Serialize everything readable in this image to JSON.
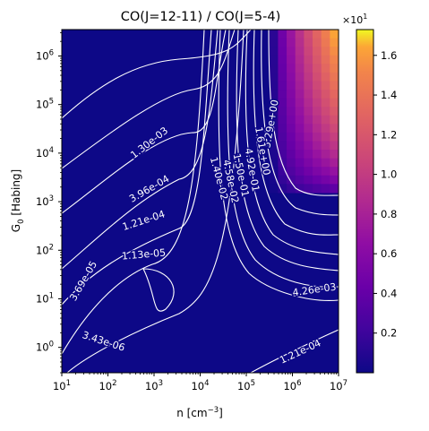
{
  "chart_data": {
    "type": "heatmap",
    "title": "CO(J=12-11) / CO(J=5-4)",
    "xlabel": "n [cm",
    "xlabel_sup": "−3",
    "xlabel_end": "]",
    "ylabel": "G",
    "ylabel_sub": "0",
    "ylabel_end": " [Habing]",
    "x_scale": "log",
    "y_scale": "log",
    "xlim": [
      10,
      10000000
    ],
    "ylim": [
      0.3,
      3500000
    ],
    "x_ticks": [
      {
        "value": 10,
        "base": "10",
        "exp": "1"
      },
      {
        "value": 100,
        "base": "10",
        "exp": "2"
      },
      {
        "value": 1000,
        "base": "10",
        "exp": "3"
      },
      {
        "value": 10000,
        "base": "10",
        "exp": "4"
      },
      {
        "value": 100000,
        "base": "10",
        "exp": "5"
      },
      {
        "value": 1000000,
        "base": "10",
        "exp": "6"
      },
      {
        "value": 10000000,
        "base": "10",
        "exp": "7"
      }
    ],
    "y_ticks": [
      {
        "value": 1,
        "base": "10",
        "exp": "0"
      },
      {
        "value": 10,
        "base": "10",
        "exp": "1"
      },
      {
        "value": 100,
        "base": "10",
        "exp": "2"
      },
      {
        "value": 1000,
        "base": "10",
        "exp": "3"
      },
      {
        "value": 10000,
        "base": "10",
        "exp": "4"
      },
      {
        "value": 100000,
        "base": "10",
        "exp": "5"
      },
      {
        "value": 1000000,
        "base": "10",
        "exp": "6"
      }
    ],
    "colormap": "plasma",
    "colorbar": {
      "min": 0.0,
      "max": 1.73,
      "ticks": [
        "0.2",
        "0.4",
        "0.6",
        "0.8",
        "1.0",
        "1.2",
        "1.4",
        "1.6"
      ],
      "tick_values": [
        0.2,
        0.4,
        0.6,
        0.8,
        1.0,
        1.2,
        1.4,
        1.6
      ],
      "offset_base": "×10",
      "offset_exp": "1"
    },
    "contour_levels": [
      "3.43e-06",
      "1.13e-05",
      "3.69e-05",
      "1.21e-04",
      "3.96e-04",
      "1.30e-03",
      "4.26e-03",
      "1.40e-02",
      "4.58e-02",
      "1.50e-01",
      "4.92e-01",
      "1.61e+00",
      "5.29e+00"
    ],
    "contour_labels": [
      {
        "text": "1.30e-03",
        "x": 800,
        "y": 16000,
        "angle": -38
      },
      {
        "text": "3.96e-04",
        "x": 800,
        "y": 1800,
        "angle": -30
      },
      {
        "text": "1.21e-04",
        "x": 600,
        "y": 400,
        "angle": -18
      },
      {
        "text": "1.13e-05",
        "x": 600,
        "y": 80,
        "angle": -5
      },
      {
        "text": "3.69e-05",
        "x": 30,
        "y": 23,
        "angle": -60
      },
      {
        "text": "3.43e-06",
        "x": 80,
        "y": 1.3,
        "angle": 18
      },
      {
        "text": "5.29e+00",
        "x": 350000,
        "y": 40000,
        "angle": -80
      },
      {
        "text": "1.61e+00",
        "x": 220000,
        "y": 11000,
        "angle": 80
      },
      {
        "text": "4.92e-01",
        "x": 130000,
        "y": 4500,
        "angle": 80
      },
      {
        "text": "1.50e-01",
        "x": 75000,
        "y": 3500,
        "angle": 78
      },
      {
        "text": "4.58e-02",
        "x": 45000,
        "y": 2600,
        "angle": 78
      },
      {
        "text": "1.40e-02",
        "x": 25000,
        "y": 3000,
        "angle": 75
      },
      {
        "text": "4.26e-03",
        "x": 3000000,
        "y": 15,
        "angle": -8
      },
      {
        "text": "1.21e-04",
        "x": 1500000,
        "y": 0.8,
        "angle": -25
      }
    ]
  }
}
